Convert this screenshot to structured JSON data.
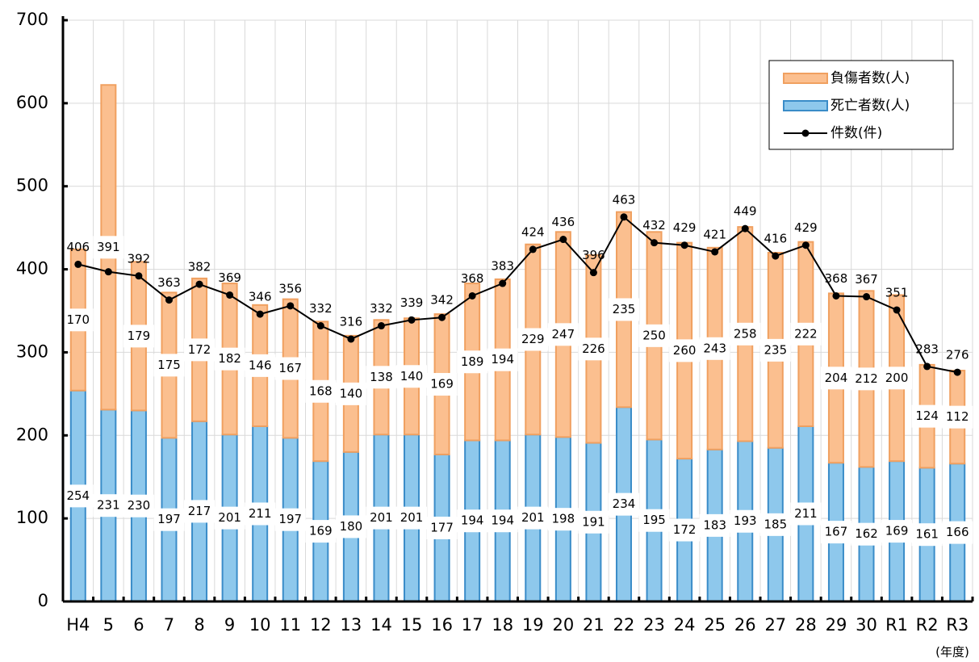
{
  "chart_data": {
    "type": "bar",
    "stacked": true,
    "x_label": "(年度)",
    "categories": [
      "H4",
      "5",
      "6",
      "7",
      "8",
      "9",
      "10",
      "11",
      "12",
      "13",
      "14",
      "15",
      "16",
      "17",
      "18",
      "19",
      "20",
      "21",
      "22",
      "23",
      "24",
      "25",
      "26",
      "27",
      "28",
      "29",
      "30",
      "R1",
      "R2",
      "R3"
    ],
    "series": [
      {
        "name": "死亡者数(人)",
        "type": "bar",
        "color": "#8ec8ec",
        "values": [
          254,
          231,
          230,
          197,
          217,
          201,
          211,
          197,
          169,
          180,
          201,
          201,
          177,
          194,
          194,
          201,
          198,
          191,
          234,
          195,
          172,
          183,
          193,
          185,
          211,
          167,
          162,
          169,
          161,
          166
        ]
      },
      {
        "name": "負傷者数(人)",
        "type": "bar",
        "color": "#fbbf8f",
        "values": [
          170,
          391,
          179,
          175,
          172,
          182,
          146,
          167,
          168,
          140,
          138,
          140,
          169,
          189,
          194,
          229,
          247,
          226,
          235,
          250,
          260,
          243,
          258,
          235,
          222,
          204,
          212,
          200,
          124,
          112
        ]
      },
      {
        "name": "件数(件)",
        "type": "line",
        "color": "#000000",
        "values": [
          406,
          397,
          392,
          363,
          382,
          369,
          346,
          356,
          332,
          316,
          332,
          339,
          342,
          368,
          383,
          424,
          436,
          396,
          463,
          432,
          429,
          421,
          449,
          416,
          429,
          368,
          367,
          351,
          283,
          276
        ]
      }
    ],
    "ylim": [
      0,
      700
    ],
    "yticks": [
      0,
      100,
      200,
      300,
      400,
      500,
      600,
      700
    ],
    "grid": true,
    "legend": "top-right"
  }
}
